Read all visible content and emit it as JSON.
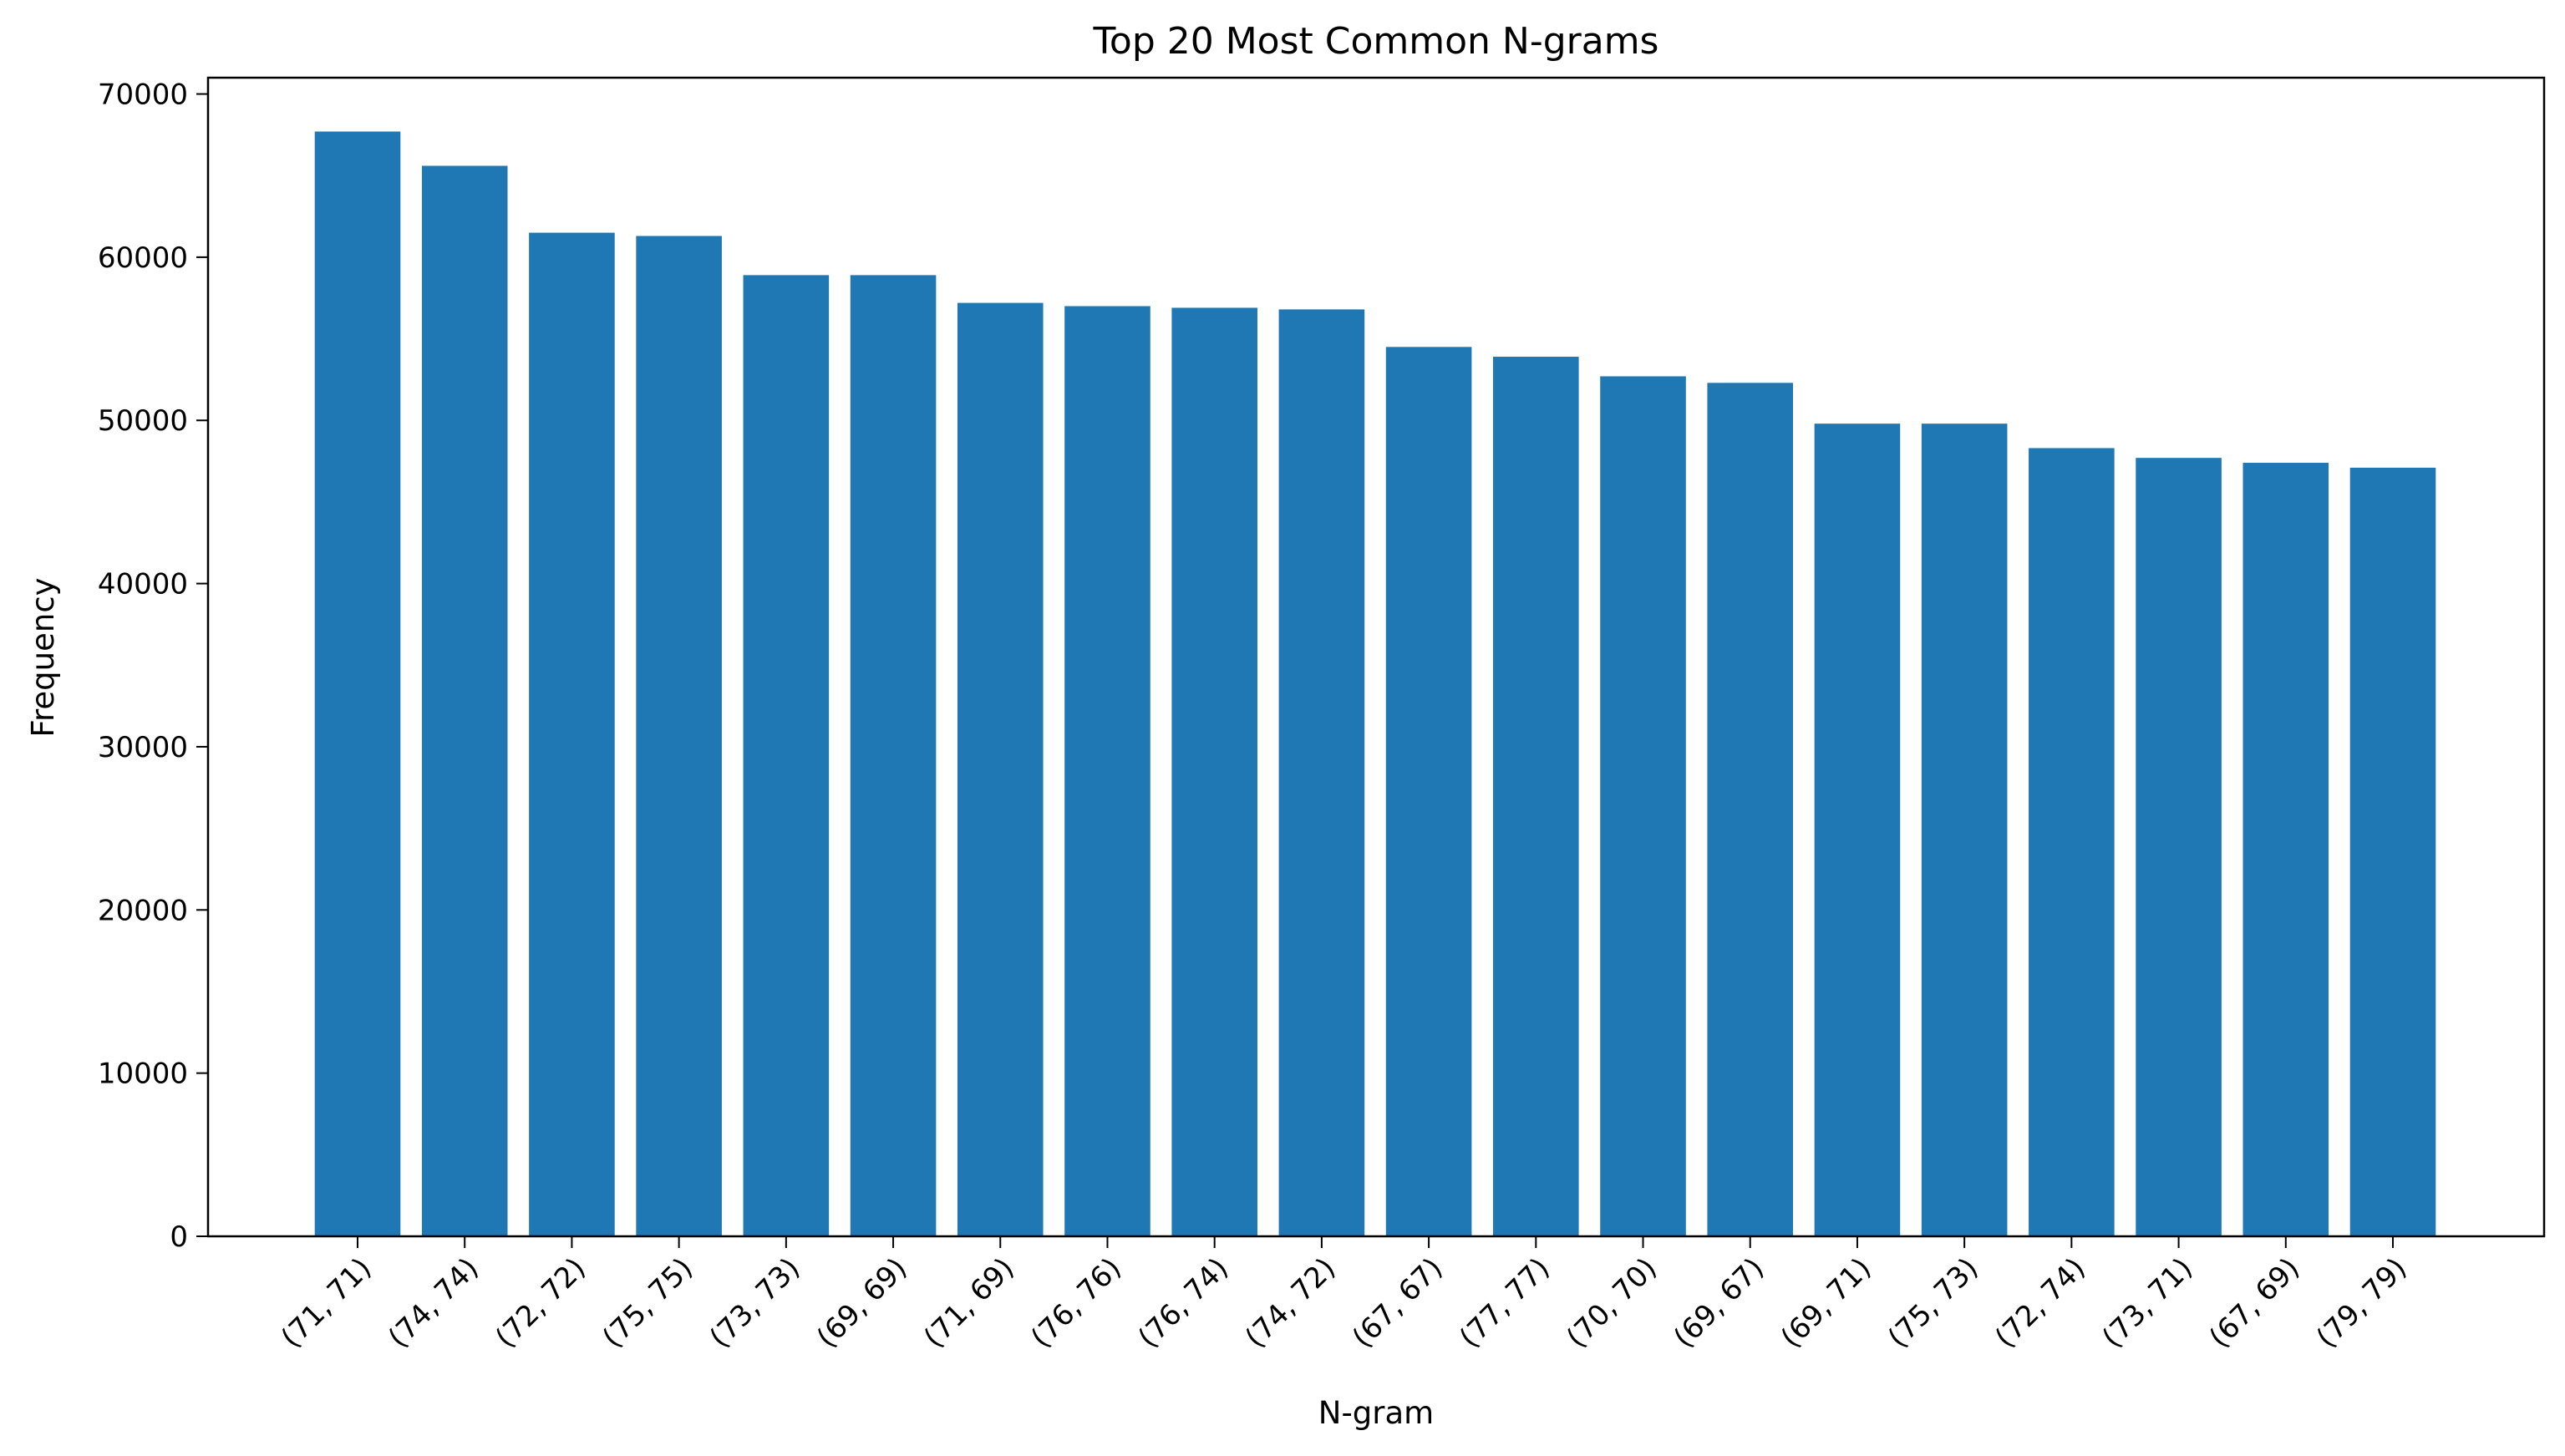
{
  "chart_data": {
    "type": "bar",
    "title": "Top 20 Most Common N-grams",
    "xlabel": "N-gram",
    "ylabel": "Frequency",
    "categories": [
      "(71, 71)",
      "(74, 74)",
      "(72, 72)",
      "(75, 75)",
      "(73, 73)",
      "(69, 69)",
      "(71, 69)",
      "(76, 76)",
      "(76, 74)",
      "(74, 72)",
      "(67, 67)",
      "(77, 77)",
      "(70, 70)",
      "(69, 67)",
      "(69, 71)",
      "(75, 73)",
      "(72, 74)",
      "(73, 71)",
      "(67, 69)",
      "(79, 79)"
    ],
    "values": [
      67700,
      65600,
      61500,
      61300,
      58900,
      58900,
      57200,
      57000,
      56900,
      56800,
      54500,
      53900,
      52700,
      52300,
      49800,
      49800,
      48300,
      47700,
      47400,
      47100
    ],
    "ylim": [
      0,
      71000
    ],
    "yticks": [
      0,
      10000,
      20000,
      30000,
      40000,
      50000,
      60000,
      70000
    ],
    "grid": false,
    "bar_color": "#1f77b4"
  }
}
